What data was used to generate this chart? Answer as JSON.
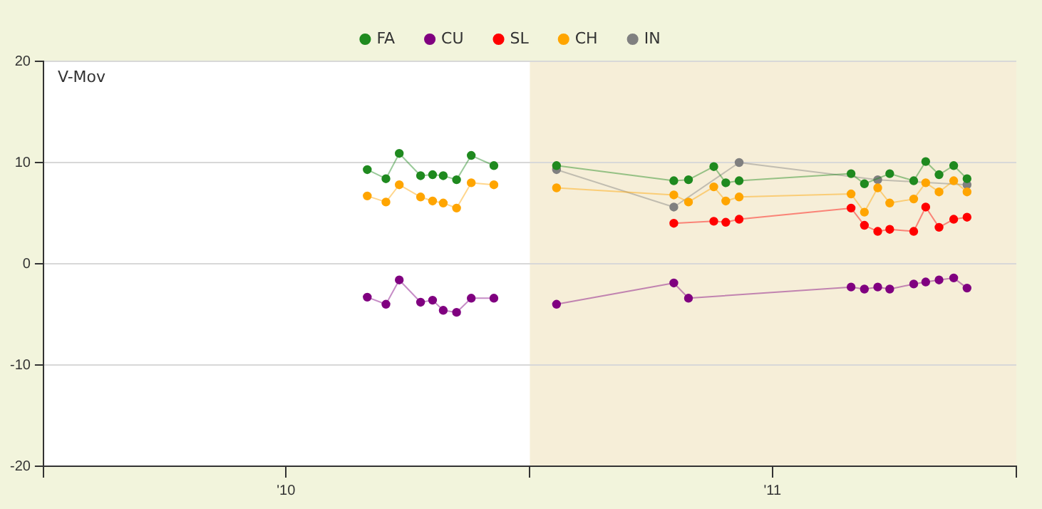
{
  "chart_data": {
    "type": "line",
    "ylabel": "V-Mov",
    "xlim": [
      "2010",
      "2012"
    ],
    "xticks": [
      {
        "value": "2010",
        "label": null
      },
      {
        "value": "2010-07-02",
        "label": "'10"
      },
      {
        "value": "2011",
        "label": null
      },
      {
        "value": "2011-07-02",
        "label": "'11"
      },
      {
        "value": "2012",
        "label": null
      }
    ],
    "ylim": [
      -20,
      20
    ],
    "yticks": [
      -20,
      -10,
      0,
      10,
      20
    ],
    "grid": "y",
    "legend": "top",
    "marker": "circle",
    "line_style": "solid",
    "bands": [
      {
        "axis": "x",
        "from": "2011",
        "to": "2012",
        "color": "#f6eed8"
      }
    ],
    "series": [
      {
        "name": "FA",
        "color": "#1f8a1f",
        "x": [
          "2010-09-01",
          "2010-09-15",
          "2010-09-25",
          "2010-10-11",
          "2010-10-20",
          "2010-10-28",
          "2010-11-07",
          "2010-11-18",
          "2010-12-05",
          "2011-01-01",
          "2011-01-21",
          "2011-04-19",
          "2011-04-30",
          "2011-05-19",
          "2011-05-28",
          "2011-06-07",
          "2011-08-30",
          "2011-09-09",
          "2011-09-28",
          "2011-10-16",
          "2011-10-25",
          "2011-11-04",
          "2011-11-15",
          "2011-11-25"
        ],
        "values": [
          9.3,
          8.4,
          10.9,
          8.7,
          8.8,
          8.7,
          8.3,
          10.7,
          9.7,
          null,
          9.7,
          8.2,
          8.3,
          9.6,
          8.0,
          8.2,
          8.9,
          7.9,
          8.9,
          8.2,
          10.1,
          8.8,
          9.7,
          8.4
        ]
      },
      {
        "name": "CU",
        "color": "#800080",
        "x": [
          "2010-09-01",
          "2010-09-15",
          "2010-09-25",
          "2010-10-11",
          "2010-10-20",
          "2010-10-28",
          "2010-11-07",
          "2010-11-18",
          "2010-12-05",
          "2011-01-01",
          "2011-01-21",
          "2011-04-19",
          "2011-04-30",
          "2011-08-30",
          "2011-09-09",
          "2011-09-19",
          "2011-09-28",
          "2011-10-16",
          "2011-10-25",
          "2011-11-04",
          "2011-11-15",
          "2011-11-25"
        ],
        "values": [
          -3.3,
          -4.0,
          -1.6,
          -3.8,
          -3.6,
          -4.6,
          -4.8,
          -3.4,
          -3.4,
          null,
          -4.0,
          -1.9,
          -3.4,
          -2.3,
          -2.5,
          -2.3,
          -2.5,
          -2.0,
          -1.8,
          -1.6,
          -1.4,
          -2.4
        ]
      },
      {
        "name": "SL",
        "color": "#ff0000",
        "x": [
          "2011-04-19",
          "2011-05-19",
          "2011-05-28",
          "2011-06-07",
          "2011-08-30",
          "2011-09-09",
          "2011-09-19",
          "2011-09-28",
          "2011-10-16",
          "2011-10-25",
          "2011-11-04",
          "2011-11-15",
          "2011-11-25"
        ],
        "values": [
          4.0,
          4.2,
          4.1,
          4.4,
          5.5,
          3.8,
          3.2,
          3.4,
          3.2,
          5.6,
          3.6,
          4.4,
          4.6
        ]
      },
      {
        "name": "CH",
        "color": "#ffa500",
        "x": [
          "2010-09-01",
          "2010-09-15",
          "2010-09-25",
          "2010-10-11",
          "2010-10-20",
          "2010-10-28",
          "2010-11-07",
          "2010-11-18",
          "2010-12-05",
          "2011-01-01",
          "2011-01-21",
          "2011-04-19",
          "2011-04-30",
          "2011-05-19",
          "2011-05-28",
          "2011-06-07",
          "2011-08-30",
          "2011-09-09",
          "2011-09-19",
          "2011-09-28",
          "2011-10-16",
          "2011-10-25",
          "2011-11-04",
          "2011-11-15",
          "2011-11-25"
        ],
        "values": [
          6.7,
          6.1,
          7.8,
          6.6,
          6.2,
          6.0,
          5.5,
          8.0,
          7.8,
          null,
          7.5,
          6.8,
          6.1,
          7.6,
          6.2,
          6.6,
          6.9,
          5.1,
          7.5,
          6.0,
          6.4,
          8.0,
          7.1,
          8.2,
          7.1
        ]
      },
      {
        "name": "IN",
        "color": "#808080",
        "x": [
          "2011-01-21",
          "2011-04-19",
          "2011-06-07",
          "2011-09-19",
          "2011-11-25"
        ],
        "values": [
          9.3,
          5.6,
          10.0,
          8.3,
          7.8
        ]
      }
    ]
  }
}
